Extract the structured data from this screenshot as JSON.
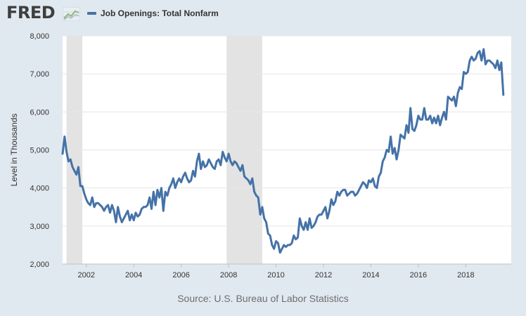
{
  "logo": {
    "text": "FRED",
    "icon": "fred-line-graph-icon"
  },
  "source": "Source: U.S. Bureau of Labor Statistics",
  "colors": {
    "line": "#4572a7",
    "recession": "#e3e3e3",
    "plot_bg": "#ffffff",
    "page_bg": "#e1e9f0",
    "grid": "#e6e6e6"
  },
  "chart_data": {
    "type": "line",
    "title": "",
    "xlabel": "",
    "ylabel": "Level in Thousands",
    "xlim": [
      "2001-01",
      "2019-12"
    ],
    "ylim": [
      2000,
      8000
    ],
    "grid": true,
    "legend_position": "top-left",
    "y_ticks": [
      "2,000",
      "3,000",
      "4,000",
      "5,000",
      "6,000",
      "7,000",
      "8,000"
    ],
    "x_ticks": [
      "2002",
      "2004",
      "2006",
      "2008",
      "2010",
      "2012",
      "2014",
      "2016",
      "2018"
    ],
    "recessions": [
      {
        "start": "2001-03",
        "end": "2001-11"
      },
      {
        "start": "2007-12",
        "end": "2009-06"
      }
    ],
    "series": [
      {
        "name": "Job Openings: Total Nonfarm",
        "start": "2001-01",
        "frequency": "monthly",
        "values": [
          4900,
          5350,
          4950,
          4700,
          4750,
          4550,
          4450,
          4350,
          4550,
          4050,
          4050,
          3850,
          3700,
          3600,
          3550,
          3750,
          3500,
          3600,
          3600,
          3550,
          3500,
          3400,
          3500,
          3550,
          3350,
          3550,
          3400,
          3100,
          3500,
          3250,
          3100,
          3200,
          3300,
          3400,
          3150,
          3300,
          3150,
          3350,
          3250,
          3300,
          3450,
          3500,
          3500,
          3550,
          3750,
          3450,
          3900,
          3550,
          3950,
          3750,
          4000,
          3400,
          3900,
          3800,
          4000,
          4100,
          4250,
          4000,
          4150,
          4250,
          4150,
          4300,
          4400,
          4250,
          4150,
          4200,
          4450,
          4300,
          4700,
          4900,
          4500,
          4700,
          4550,
          4600,
          4750,
          4650,
          4550,
          4500,
          4700,
          4750,
          4600,
          4950,
          4800,
          4700,
          4900,
          4700,
          4600,
          4700,
          4650,
          4550,
          4450,
          4600,
          4300,
          4250,
          4200,
          4100,
          4250,
          3900,
          3800,
          3750,
          3300,
          3500,
          3200,
          3100,
          2800,
          2750,
          2500,
          2400,
          2600,
          2550,
          2300,
          2400,
          2500,
          2450,
          2500,
          2500,
          2550,
          2750,
          2650,
          2700,
          3200,
          3000,
          2900,
          3100,
          2900,
          3200,
          2950,
          3000,
          3100,
          3250,
          3300,
          3300,
          3400,
          3500,
          3200,
          3400,
          3700,
          3550,
          3650,
          3900,
          3800,
          3900,
          3950,
          3950,
          3800,
          3850,
          3900,
          3900,
          3800,
          3850,
          3950,
          4050,
          4150,
          4100,
          4000,
          4200,
          4150,
          4250,
          4050,
          4000,
          4300,
          4400,
          4700,
          4800,
          5000,
          4950,
          5350,
          4900,
          5050,
          4750,
          5000,
          5400,
          5350,
          5300,
          5650,
          5450,
          6100,
          5550,
          5500,
          5650,
          5900,
          5800,
          5800,
          6100,
          5800,
          5800,
          5900,
          5700,
          5850,
          5700,
          5900,
          5650,
          5850,
          6000,
          5800,
          6400,
          6350,
          6300,
          6400,
          6150,
          6500,
          6650,
          6600,
          7050,
          7000,
          7050,
          7350,
          7450,
          7350,
          7400,
          7550,
          7600,
          7350,
          7650,
          7250,
          7350,
          7350,
          7300,
          7250,
          7150,
          7350,
          7100,
          7300,
          6450
        ]
      }
    ]
  }
}
